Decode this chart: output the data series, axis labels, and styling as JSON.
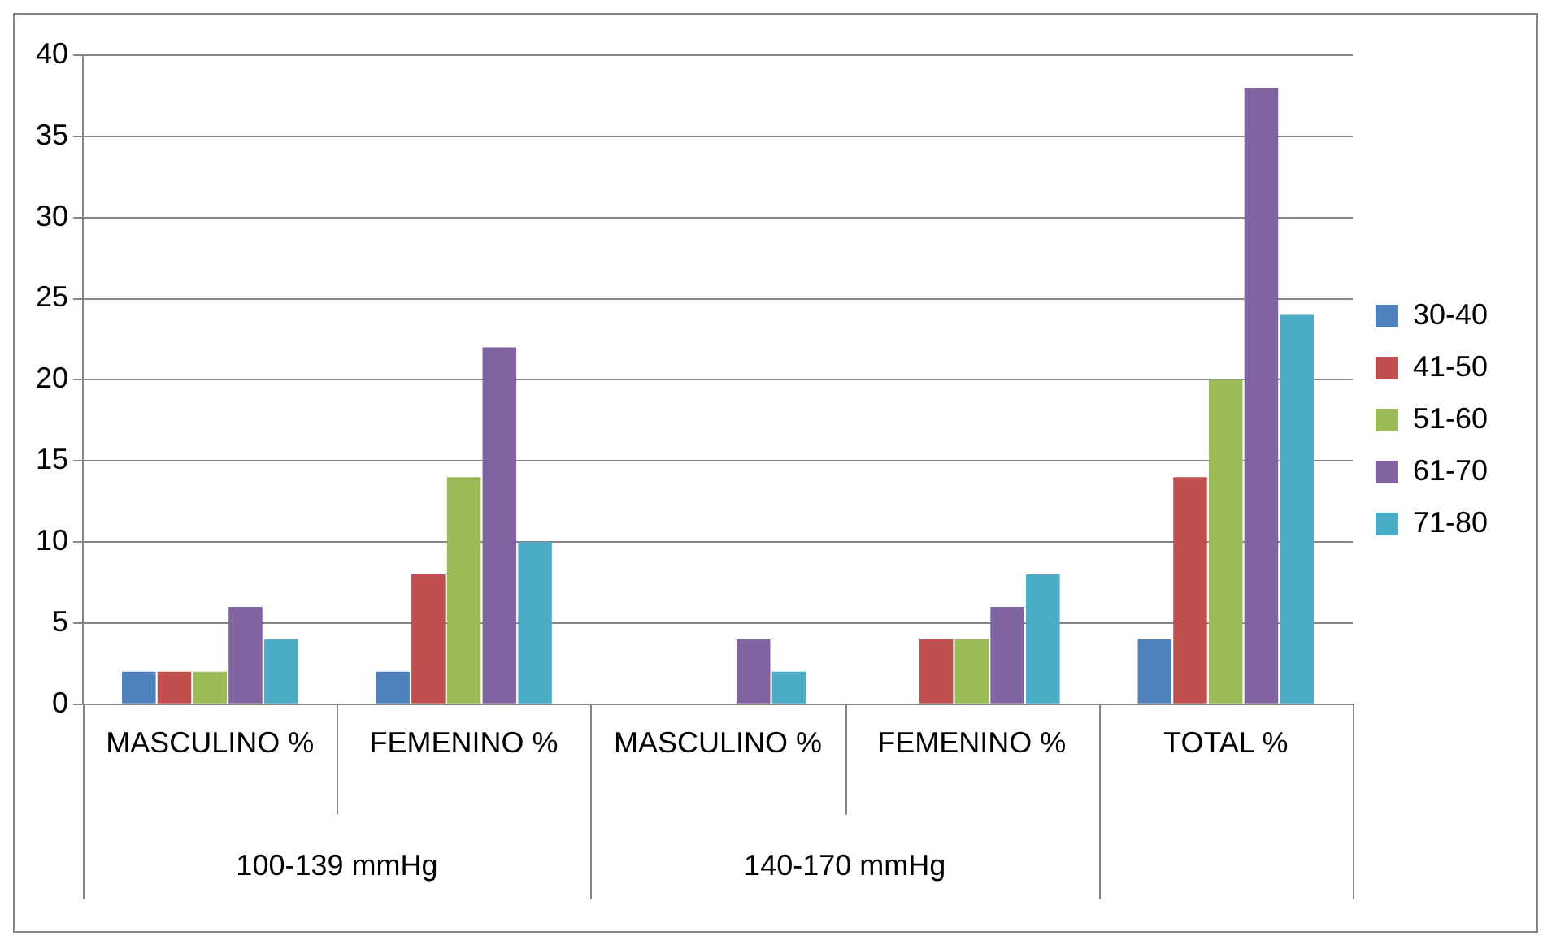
{
  "chart_data": {
    "type": "bar",
    "categories": [
      "MASCULINO %",
      "FEMENINO %",
      "MASCULINO %",
      "FEMENINO %",
      "TOTAL %"
    ],
    "series": [
      {
        "name": "30-40",
        "color": "#4f81bd",
        "values": [
          2,
          2,
          0,
          0,
          4
        ]
      },
      {
        "name": "41-50",
        "color": "#c0504d",
        "values": [
          2,
          8,
          0,
          4,
          14
        ]
      },
      {
        "name": "51-60",
        "color": "#9bbb59",
        "values": [
          2,
          14,
          0,
          4,
          20
        ]
      },
      {
        "name": "61-70",
        "color": "#8064a2",
        "values": [
          6,
          22,
          4,
          6,
          38
        ]
      },
      {
        "name": "71-80",
        "color": "#4bacc6",
        "values": [
          4,
          10,
          2,
          8,
          24
        ]
      }
    ],
    "annotations": [
      "100-139 mmHg",
      "140-170 mmHg"
    ],
    "ylim": [
      0,
      40
    ],
    "yticks": [
      0,
      5,
      10,
      15,
      20,
      25,
      30,
      35,
      40
    ],
    "grid": "y",
    "legend": "right"
  }
}
